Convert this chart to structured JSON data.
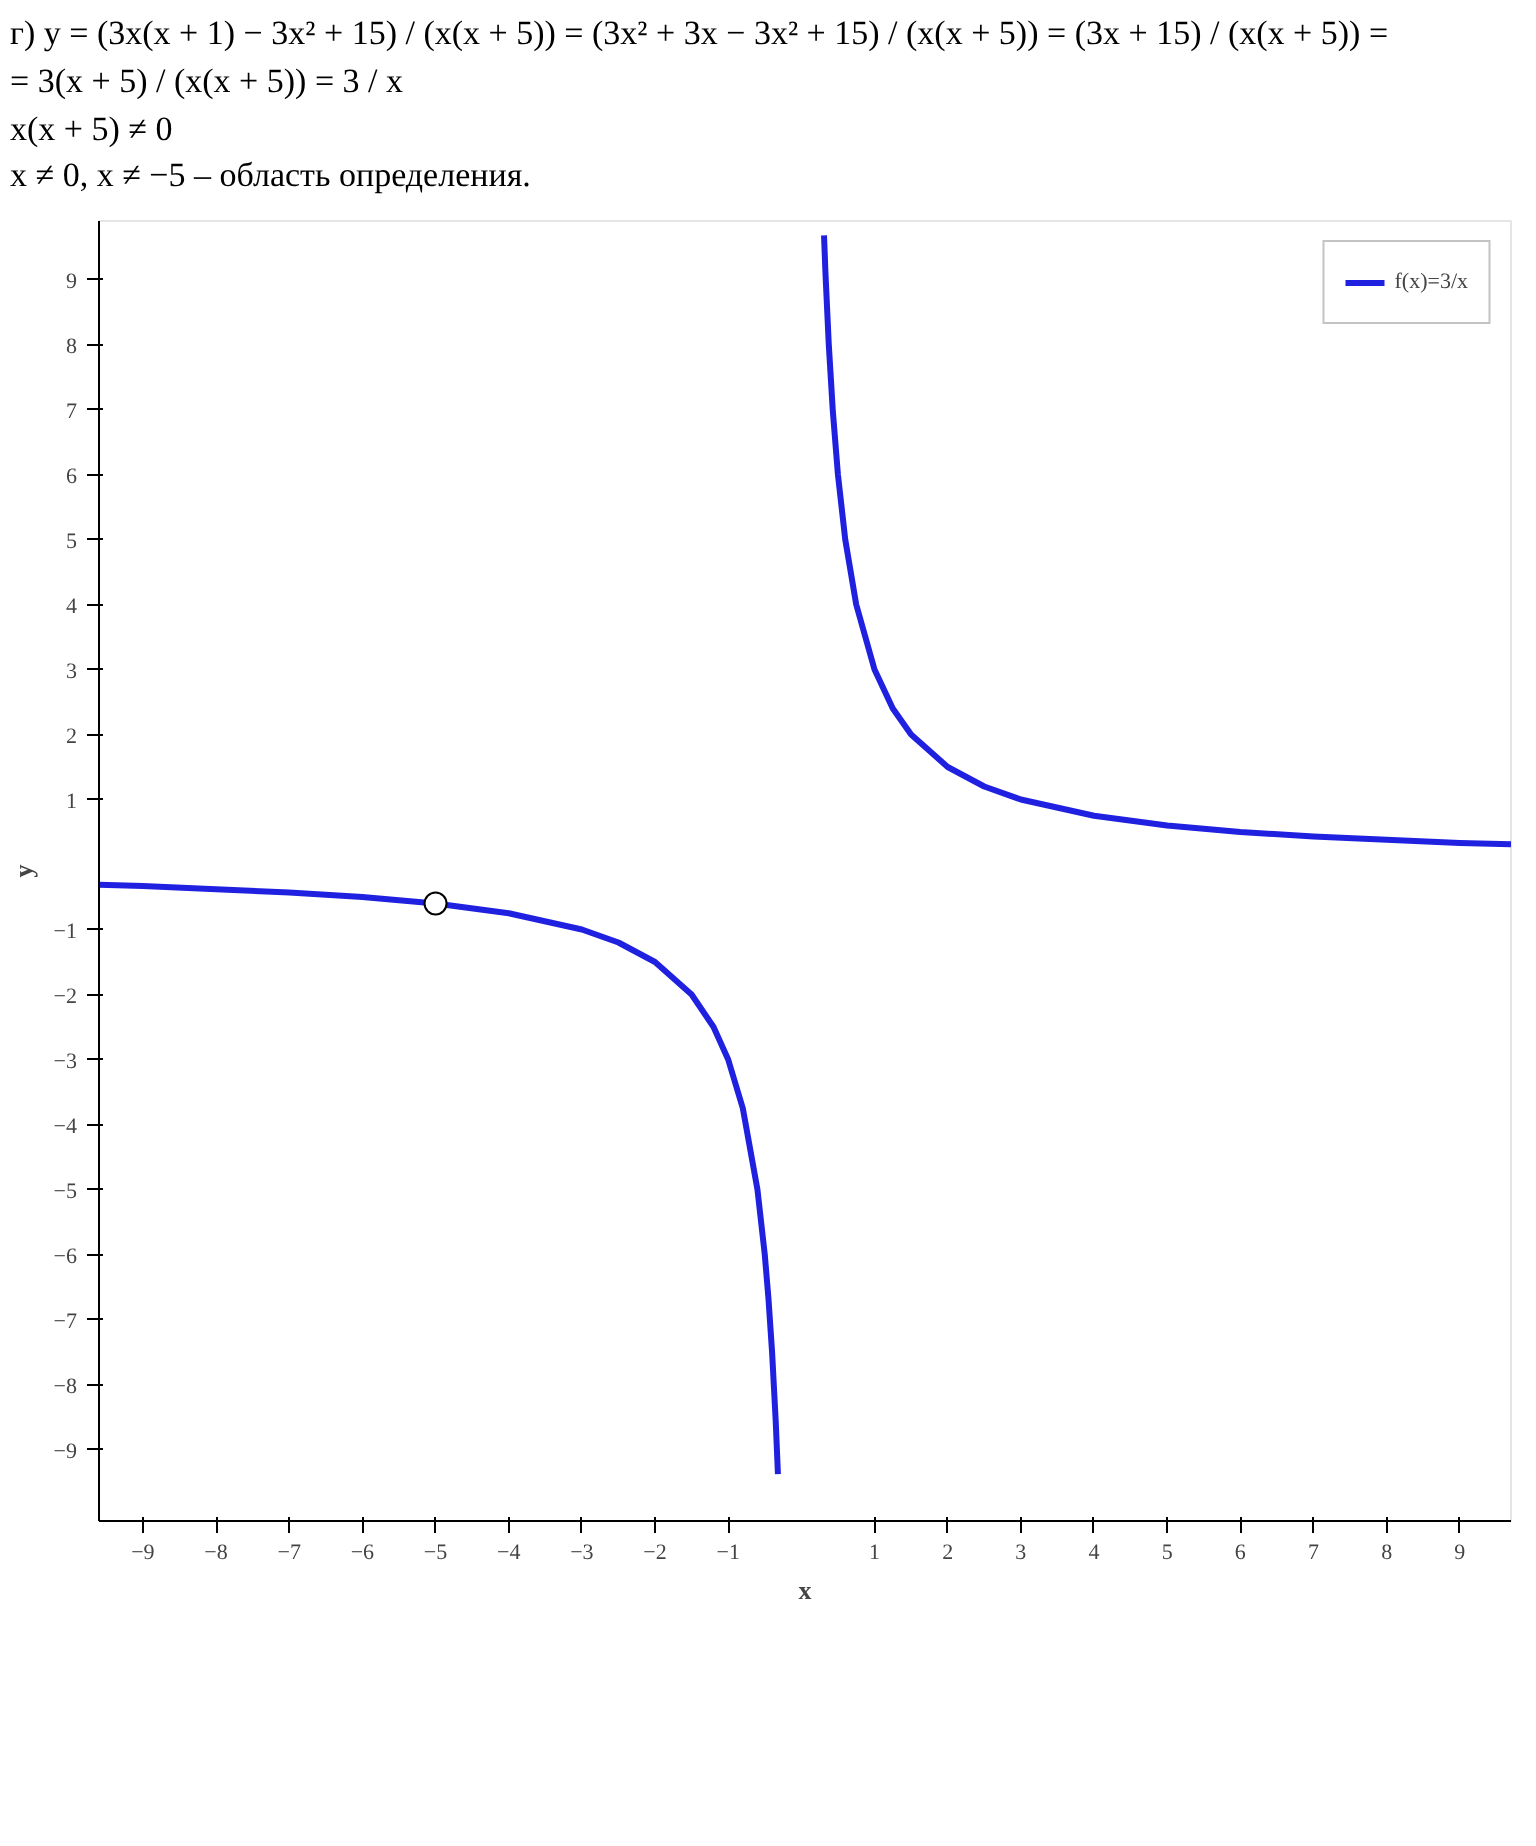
{
  "chart_data": {
    "type": "line",
    "xlabel": "x",
    "ylabel": "y",
    "annotations": [
      "г) y = (3x(x + 1) − 3x² + 15) / (x(x + 5)) = (3x² + 3x − 3x² + 15) / (x(x + 5)) = (3x + 15) / (x(x + 5)) =",
      "= 3(x + 5) / (x(x + 5)) = 3 / x",
      "x(x + 5) ≠ 0",
      "x ≠ 0,     x ≠ −5 – область определения."
    ],
    "series": [
      {
        "name": "f(x)=3/x",
        "color": "#2020e0",
        "x": [
          -9.6,
          -9,
          -8,
          -7,
          -6,
          -5,
          -4,
          -3,
          -2.5,
          -2,
          -1.5,
          -1.2,
          -1,
          -0.8,
          -0.6,
          -0.5,
          -0.45,
          -0.4,
          -0.35,
          -0.32,
          null,
          0.31,
          0.33,
          0.375,
          0.43,
          0.5,
          0.6,
          0.75,
          1,
          1.25,
          1.5,
          2,
          2.5,
          3,
          4,
          5,
          6,
          7,
          8,
          9,
          9.7
        ],
        "values": [
          -0.31,
          -0.33,
          -0.38,
          -0.43,
          -0.5,
          -0.6,
          -0.75,
          -1,
          -1.2,
          -1.5,
          -2,
          -2.5,
          -3,
          -3.75,
          -5,
          -6,
          -6.67,
          -7.5,
          -8.57,
          -9.38,
          null,
          9.68,
          9.09,
          8,
          6.98,
          6,
          5,
          4,
          3,
          2.4,
          2,
          1.5,
          1.2,
          1,
          0.75,
          0.6,
          0.5,
          0.43,
          0.38,
          0.33,
          0.31
        ]
      },
      {
        "type": "scatter",
        "marker": "circle",
        "color": "#000000",
        "x": [
          -5
        ],
        "values": [
          -0.6
        ]
      }
    ],
    "xlim": [
      -9.6,
      9.7
    ],
    "ylim": [
      -10.1,
      9.9
    ],
    "xticks": [
      -9,
      -8,
      -7,
      -6,
      -5,
      -4,
      -3,
      -2,
      -1,
      1,
      2,
      3,
      4,
      5,
      6,
      7,
      8,
      9
    ],
    "yticks": [
      -9,
      -8,
      -7,
      -6,
      -5,
      -4,
      -3,
      -2,
      -1,
      1,
      2,
      3,
      4,
      5,
      6,
      7,
      8,
      9
    ],
    "legend": "top right",
    "grid": false
  }
}
